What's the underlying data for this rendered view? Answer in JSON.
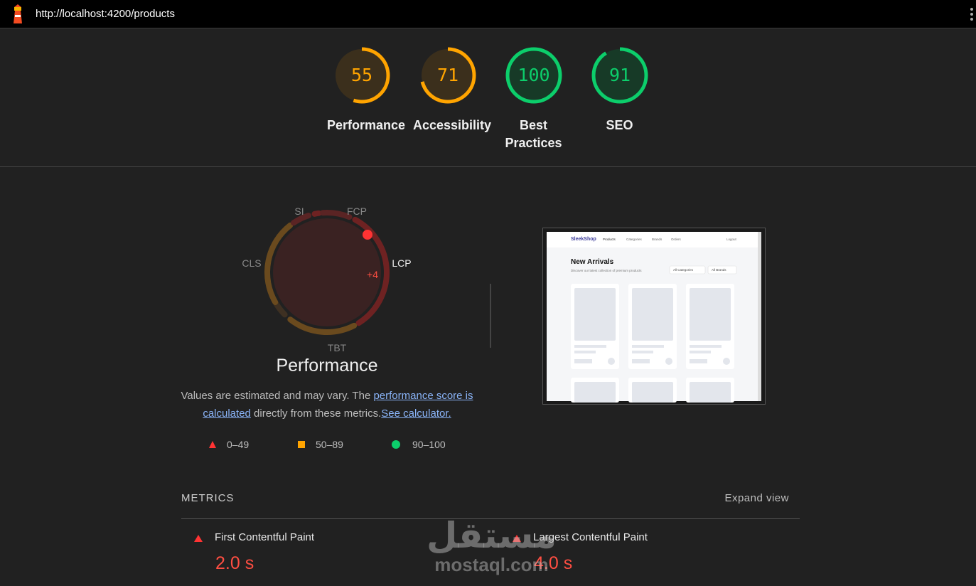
{
  "address_bar": {
    "url": "http://localhost:4200/products"
  },
  "categories": [
    {
      "label": "Performance",
      "score": 55,
      "color": "#ffa400",
      "track": "#3b2f1c"
    },
    {
      "label": "Accessibility",
      "score": 71,
      "color": "#ffa400",
      "track": "#3b2f1c"
    },
    {
      "label": "Best Practices",
      "score": 100,
      "color": "#0cce6b",
      "track": "#173a27"
    },
    {
      "label": "SEO",
      "score": 91,
      "color": "#0cce6b",
      "track": "#173a27"
    }
  ],
  "performance": {
    "title": "Performance",
    "metric_labels": [
      "SI",
      "FCP",
      "LCP",
      "CLS",
      "TBT"
    ],
    "lcp_annotation": "+4",
    "note": {
      "text_1": "Values are estimated and may vary. The ",
      "link_1": "performance score is calculated",
      "text_2": " directly from these metrics.",
      "link_2": "See calculator."
    },
    "legend": [
      "0–49",
      "50–89",
      "90–100"
    ]
  },
  "screenshot": {
    "brand": "SleekShop",
    "nav": [
      "Products",
      "Categories",
      "Brands",
      "Orders",
      "Logout"
    ],
    "heading": "New Arrivals",
    "subheading": "Discover our latest collection of premium products",
    "filters": [
      "All Categories",
      "All Brands"
    ]
  },
  "metrics": {
    "heading": "METRICS",
    "toggle": "Expand view",
    "items": [
      {
        "label": "First Contentful Paint",
        "value": "2.0 s"
      },
      {
        "label": "Largest Contentful Paint",
        "value": "4.0 s"
      }
    ]
  },
  "watermark": {
    "arabic": "مستقل",
    "latin": "mostaql.com"
  }
}
